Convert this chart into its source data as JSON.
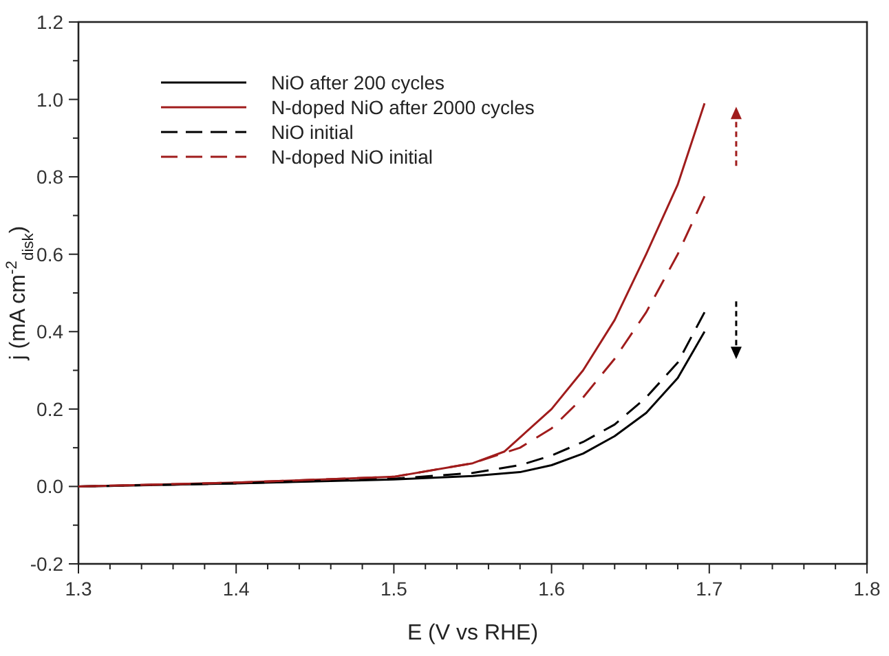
{
  "chart_data": {
    "type": "line",
    "xlabel": "E (V vs RHE)",
    "ylabel": "j (mA cm$^{-2}$$_{disk}$)",
    "xlim": [
      1.3,
      1.8
    ],
    "ylim": [
      -0.2,
      1.2
    ],
    "xticks": [
      1.3,
      {
        "value": 1.32,
        "label": null
      },
      {
        "value": 1.34,
        "label": null
      },
      {
        "value": 1.36,
        "label": null
      },
      {
        "value": 1.38,
        "label": null
      },
      1.4,
      {
        "value": 1.42,
        "label": null
      },
      {
        "value": 1.44,
        "label": null
      },
      {
        "value": 1.46,
        "label": null
      },
      {
        "value": 1.48,
        "label": null
      },
      1.5,
      {
        "value": 1.52,
        "label": null
      },
      {
        "value": 1.54,
        "label": null
      },
      {
        "value": 1.56,
        "label": null
      },
      {
        "value": 1.58,
        "label": null
      },
      1.6,
      {
        "value": 1.62,
        "label": null
      },
      {
        "value": 1.64,
        "label": null
      },
      {
        "value": 1.66,
        "label": null
      },
      {
        "value": 1.68,
        "label": null
      },
      1.7,
      {
        "value": 1.72,
        "label": null
      },
      {
        "value": 1.74,
        "label": null
      },
      {
        "value": 1.76,
        "label": null
      },
      {
        "value": 1.78,
        "label": null
      },
      1.8
    ],
    "yticks": [
      {
        "value": -0.2,
        "label": "-0.2"
      },
      {
        "value": -0.1,
        "label": null
      },
      {
        "value": 0,
        "label": "0.0"
      },
      {
        "value": 0.1,
        "label": null
      },
      0.2,
      {
        "value": 0.3,
        "label": null
      },
      0.4,
      {
        "value": 0.5,
        "label": null
      },
      0.6,
      {
        "value": 0.7,
        "label": null
      },
      0.8,
      {
        "value": 0.9,
        "label": null
      },
      {
        "value": 1,
        "label": "1.0"
      },
      {
        "value": 1.1,
        "label": null
      },
      1.2
    ],
    "legend": "top left",
    "grid": false,
    "series": [
      {
        "name": "NiO after 200 cycles",
        "color": "#000000",
        "line_style": "solid",
        "x": [
          1.3,
          1.4,
          1.5,
          1.55,
          1.58,
          1.6,
          1.62,
          1.64,
          1.66,
          1.68,
          1.697
        ],
        "values": [
          0,
          0.008,
          0.018,
          0.027,
          0.037,
          0.055,
          0.085,
          0.13,
          0.19,
          0.28,
          0.4
        ]
      },
      {
        "name": "N-doped NiO after 2000 cycles",
        "color": "#a01c1c",
        "line_style": "solid",
        "x": [
          1.3,
          1.4,
          1.5,
          1.55,
          1.57,
          1.6,
          1.62,
          1.64,
          1.66,
          1.68,
          1.697
        ],
        "values": [
          0,
          0.01,
          0.025,
          0.06,
          0.09,
          0.2,
          0.3,
          0.43,
          0.6,
          0.78,
          0.99
        ]
      },
      {
        "name": "NiO initial",
        "color": "#000000",
        "line_style": "dashed",
        "x": [
          1.3,
          1.4,
          1.5,
          1.55,
          1.58,
          1.6,
          1.62,
          1.64,
          1.66,
          1.68,
          1.697
        ],
        "values": [
          0,
          0.008,
          0.02,
          0.035,
          0.055,
          0.08,
          0.115,
          0.16,
          0.23,
          0.32,
          0.45
        ]
      },
      {
        "name": "N-doped NiO initial",
        "color": "#a01c1c",
        "line_style": "dashed",
        "x": [
          1.3,
          1.4,
          1.5,
          1.55,
          1.58,
          1.6,
          1.62,
          1.64,
          1.66,
          1.68,
          1.697
        ],
        "values": [
          0,
          0.01,
          0.025,
          0.06,
          0.1,
          0.15,
          0.23,
          0.33,
          0.45,
          0.6,
          0.75
        ]
      }
    ]
  }
}
